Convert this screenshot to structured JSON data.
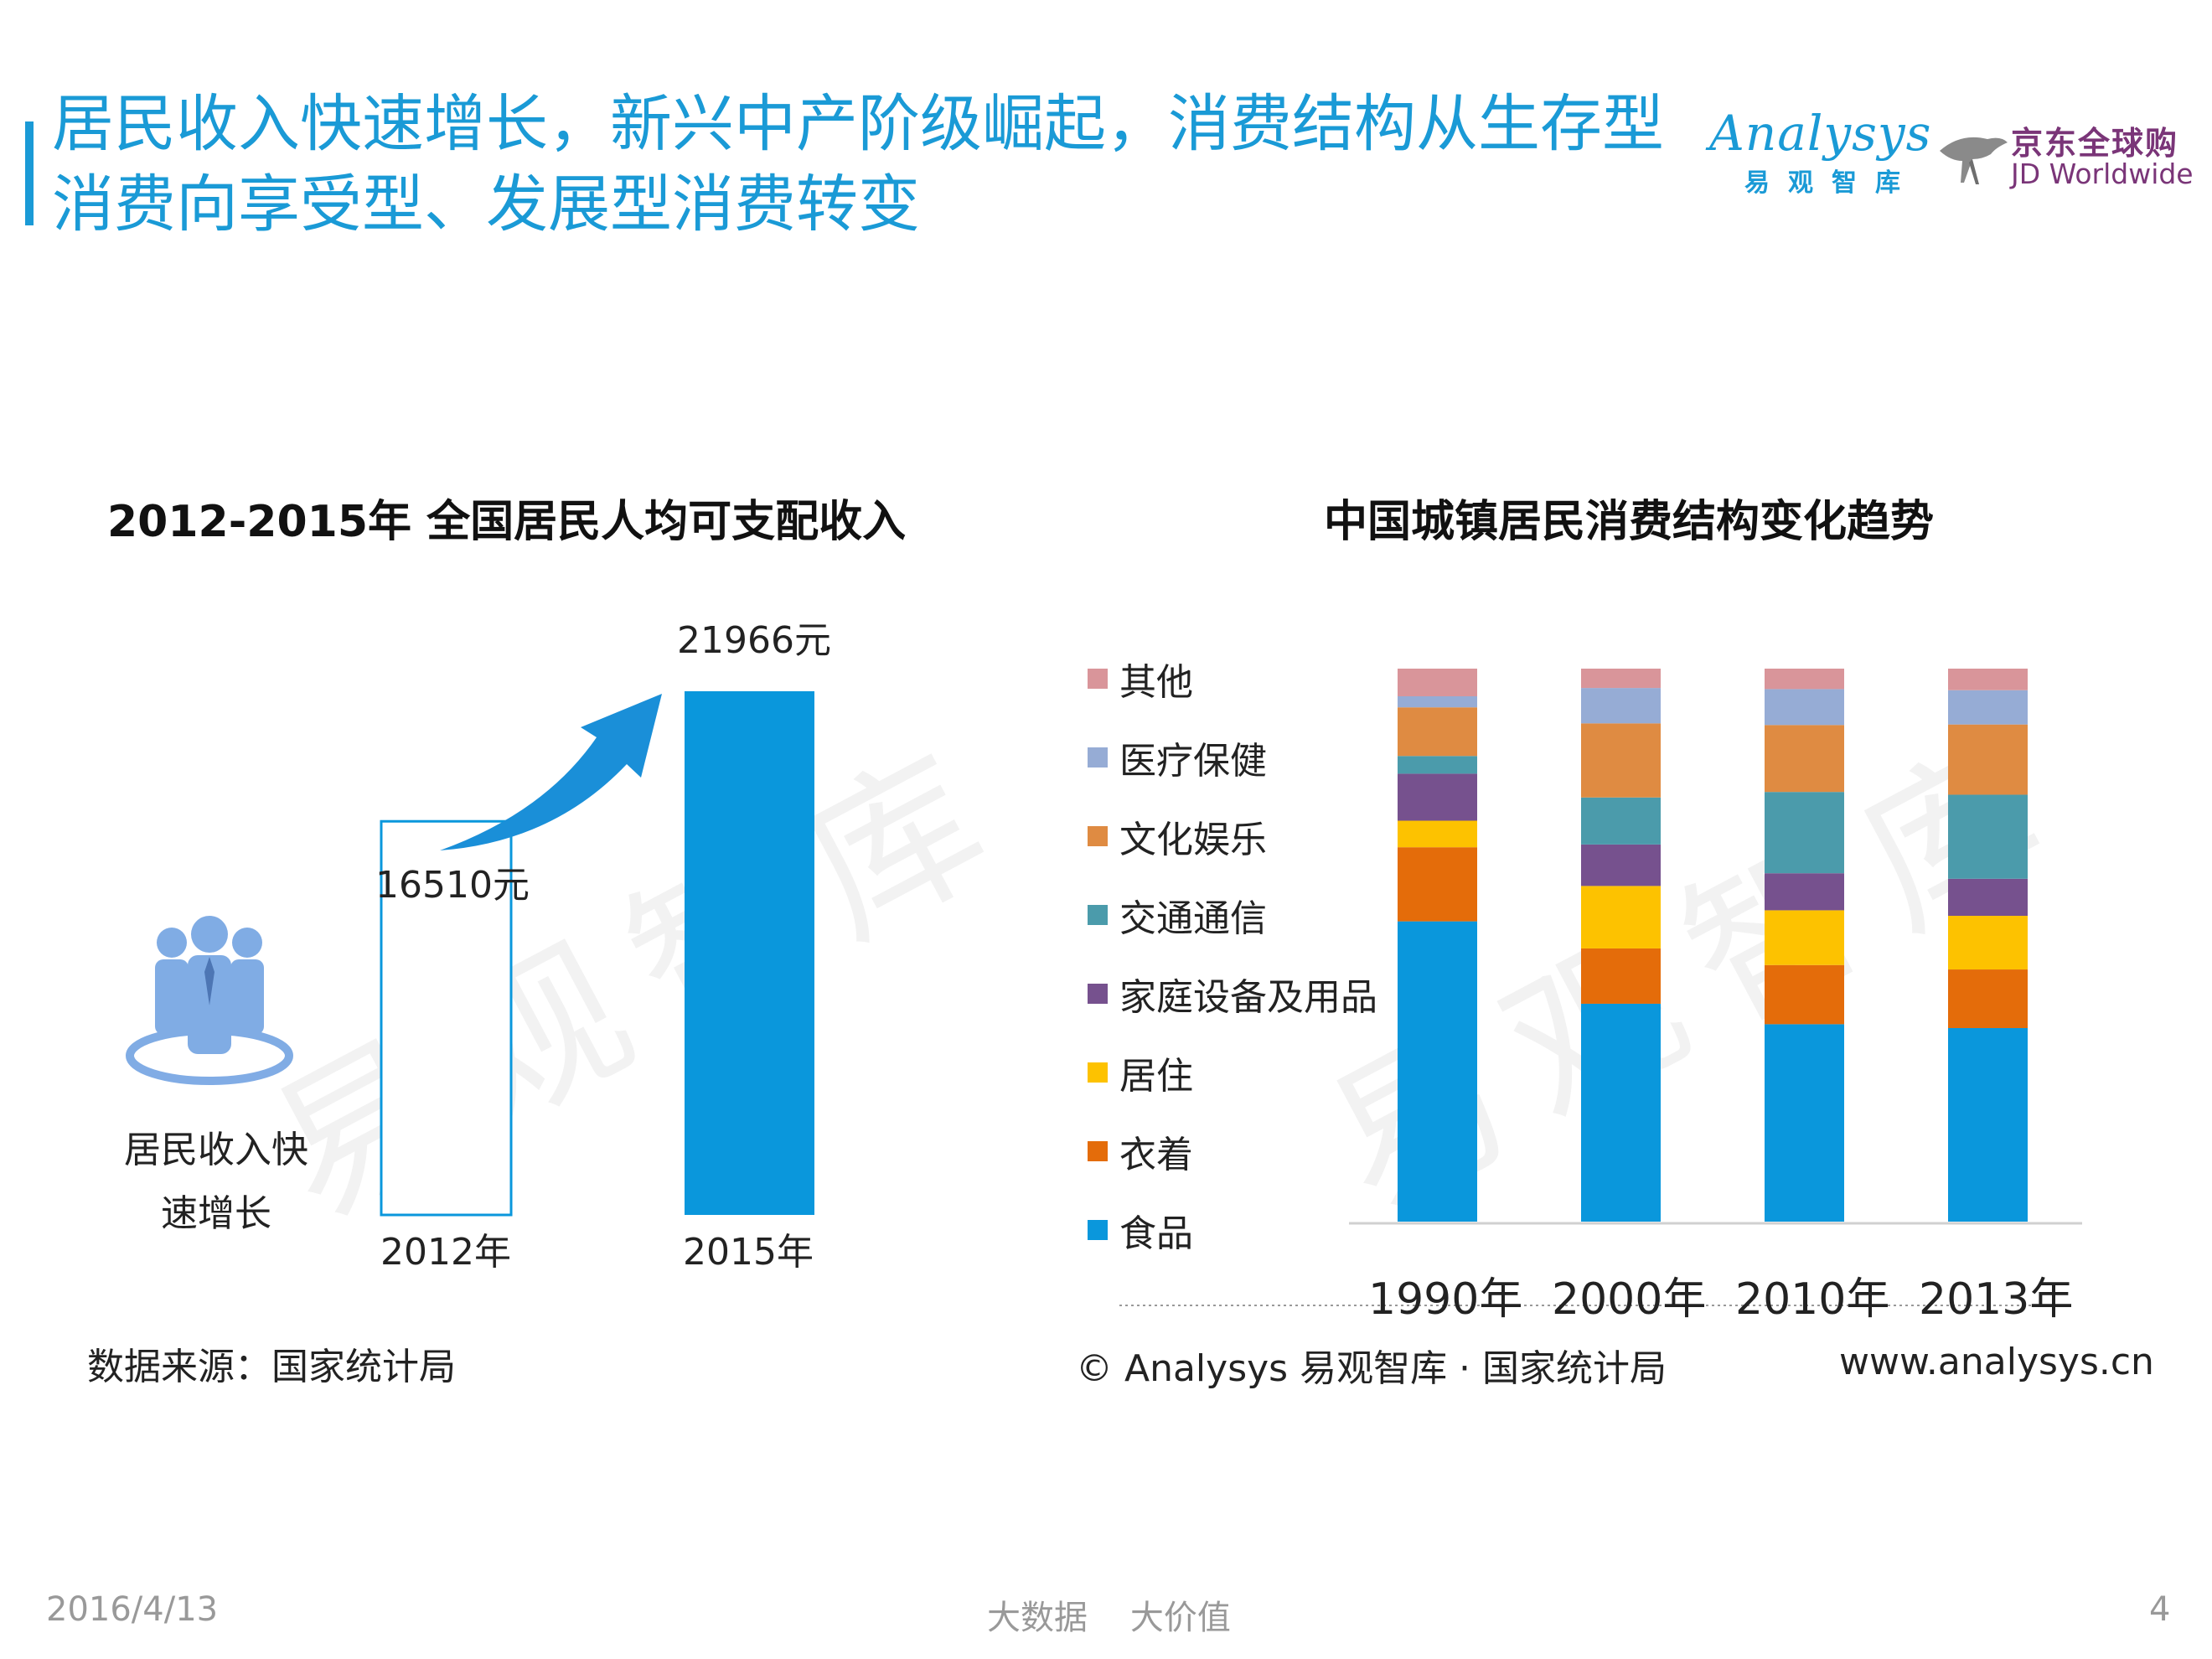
{
  "header": {
    "title": "居民收入快速增长，新兴中产阶级崛起，消费结构从生存型消费向享受型、发展型消费转变",
    "logo_analysys": "Analysys",
    "logo_analysys_cn": "易观智库",
    "logo_jd_cn": "京东全球购",
    "logo_jd_en": "JD Worldwide"
  },
  "watermark": "易观智库",
  "chart_data": [
    {
      "type": "bar",
      "title": "2012-2015年 全国居民人均可支配收入",
      "categories": [
        "2012年",
        "2015年"
      ],
      "values": [
        16510,
        21966
      ],
      "value_labels": [
        "16510元",
        "21966元"
      ],
      "unit": "元",
      "ylim": [
        0,
        21966
      ],
      "annotation": "居民收入快速增长",
      "colors": {
        "2012": "#ffffff",
        "2015": "#0a97dc",
        "outline": "#0a97dc",
        "arrow": "#1a8fd8"
      }
    },
    {
      "type": "bar",
      "stacked": true,
      "title": "中国城镇居民消费结构变化趋势",
      "categories": [
        "1990年",
        "2000年",
        "2010年",
        "2013年"
      ],
      "ylim": [
        0,
        100
      ],
      "series": [
        {
          "name": "食品",
          "color": "#0a97dc",
          "values": [
            54.3,
            39.4,
            35.7,
            35.0
          ]
        },
        {
          "name": "衣着",
          "color": "#e46c0a",
          "values": [
            13.4,
            10.0,
            10.7,
            10.6
          ]
        },
        {
          "name": "居住",
          "color": "#fdc200",
          "values": [
            4.8,
            11.3,
            9.9,
            9.7
          ]
        },
        {
          "name": "家庭设备及用品",
          "color": "#76518e",
          "values": [
            8.5,
            7.5,
            6.7,
            6.7
          ]
        },
        {
          "name": "交通通信",
          "color": "#4b9bab",
          "values": [
            3.2,
            8.5,
            14.7,
            15.2
          ]
        },
        {
          "name": "文化娱乐",
          "color": "#df8b42",
          "values": [
            8.8,
            13.4,
            12.1,
            12.7
          ]
        },
        {
          "name": "医疗保健",
          "color": "#96acd5",
          "values": [
            2.0,
            6.4,
            6.5,
            6.2
          ]
        },
        {
          "name": "其他",
          "color": "#d9959a",
          "values": [
            5.0,
            3.5,
            3.7,
            3.9
          ]
        }
      ],
      "legend": [
        "其他",
        "医疗保健",
        "文化娱乐",
        "交通通信",
        "家庭设备及用品",
        "居住",
        "衣着",
        "食品"
      ]
    }
  ],
  "source_left": "数据来源：国家统计局",
  "source_right": "© Analysys 易观智库 · 国家统计局",
  "website": "www.analysys.cn",
  "footer": {
    "date": "2016/4/13",
    "slogan": "大数据    大价值",
    "page": "4"
  }
}
